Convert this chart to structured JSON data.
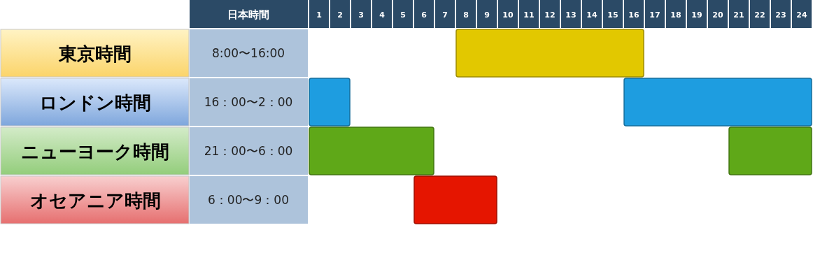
{
  "chart_data": {
    "type": "bar",
    "orientation": "horizontal",
    "categories": [
      "東京時間",
      "ロンドン時間",
      "ニューヨーク時間",
      "オセアニア時間"
    ],
    "ylabel": "日本時間",
    "xlim": [
      0.5,
      24.5
    ],
    "xticks": [
      1,
      2,
      3,
      4,
      5,
      6,
      7,
      8,
      9,
      10,
      11,
      12,
      13,
      14,
      15,
      16,
      17,
      18,
      19,
      20,
      21,
      22,
      23,
      24
    ],
    "series": [
      {
        "values": [
          9,
          9,
          4,
          4
        ],
        "base": [
          7.5,
          15.5,
          20.5,
          5.5
        ],
        "colors": [
          "#e2c800",
          "#1e9de0",
          "#5fa818",
          "#e51500"
        ]
      },
      {
        "values": [
          null,
          2,
          6,
          null
        ],
        "base": [
          null,
          0.5,
          0.5,
          null
        ],
        "colors": [
          null,
          "#1e9de0",
          "#5fa818",
          null
        ]
      }
    ],
    "annotations": [
      "8:00〜16:00",
      "16：00〜2：00",
      "21：00〜6：00",
      "6：00〜9：00"
    ]
  }
}
